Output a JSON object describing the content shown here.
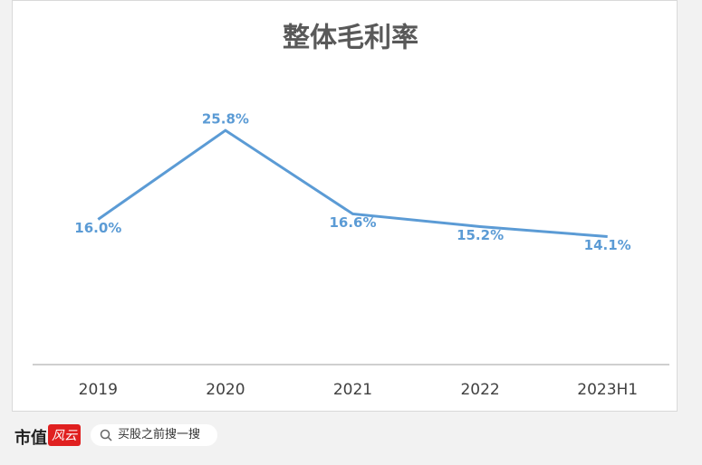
{
  "chart_data": {
    "type": "line",
    "title": "整体毛利率",
    "categories": [
      "2019",
      "2020",
      "2021",
      "2022",
      "2023H1"
    ],
    "series": [
      {
        "name": "整体毛利率",
        "color": "#5b9bd5",
        "values": [
          16.0,
          25.8,
          16.6,
          15.2,
          14.1
        ],
        "value_labels": [
          "16.0%",
          "25.8%",
          "16.6%",
          "15.2%",
          "14.1%"
        ]
      }
    ],
    "ylim": [
      0,
      30
    ],
    "grid": false
  },
  "footer": {
    "logo": "市值",
    "logo_badge": "风云",
    "search_placeholder": "买股之前搜一搜"
  }
}
